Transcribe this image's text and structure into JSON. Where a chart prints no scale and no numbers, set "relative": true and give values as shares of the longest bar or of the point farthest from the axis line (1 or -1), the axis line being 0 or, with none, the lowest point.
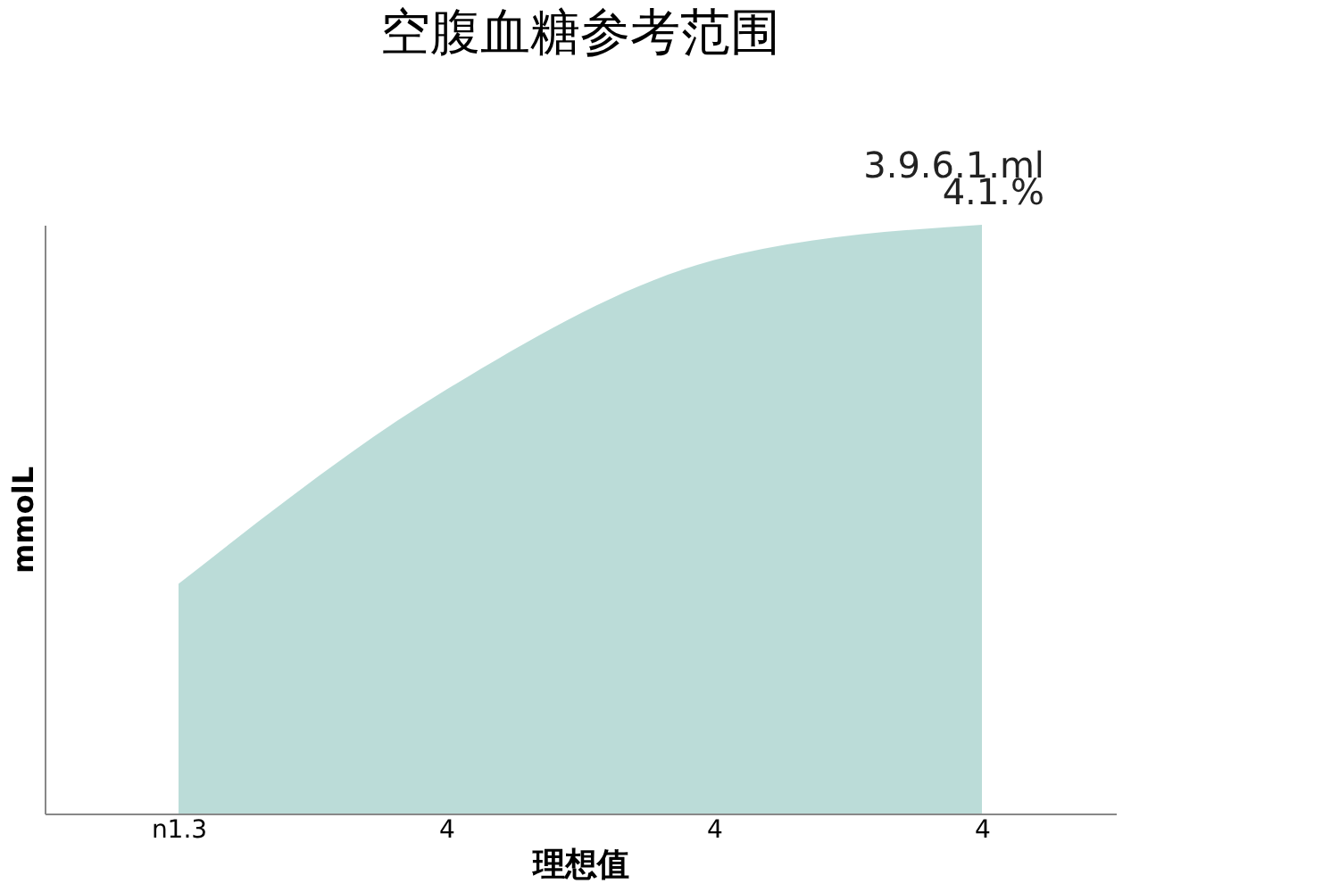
{
  "chart_data": {
    "type": "area",
    "title": "空腹血糖参考范围",
    "xlabel": "理想值",
    "ylabel": "mmolL",
    "relative": true,
    "categories": [
      "n1.3",
      "4",
      "4",
      "4"
    ],
    "series": [
      {
        "color": "#b4d8d4",
        "values": [
          0.39,
          0.72,
          0.94,
          1.0
        ]
      }
    ],
    "annotations": [
      "3.9.6.1.ml",
      "4.1.%"
    ]
  }
}
